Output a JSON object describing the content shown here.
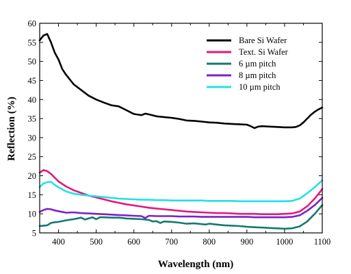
{
  "chart_data": {
    "type": "line",
    "xlabel": "Wavelength (nm)",
    "ylabel": "Reflection (%)",
    "xlim": [
      350,
      1100
    ],
    "ylim": [
      5,
      60
    ],
    "x_ticks": [
      400,
      500,
      600,
      700,
      800,
      900,
      1000,
      1100
    ],
    "y_ticks": [
      5,
      10,
      15,
      20,
      25,
      30,
      35,
      40,
      45,
      50,
      55,
      60
    ],
    "grid": false,
    "legend_position": "top-right",
    "series": [
      {
        "name": "Bare Si Wafer",
        "color": "#000000",
        "points": [
          [
            350,
            55.5
          ],
          [
            360,
            56.8
          ],
          [
            370,
            57.2
          ],
          [
            380,
            55
          ],
          [
            390,
            52.3
          ],
          [
            400,
            50.5
          ],
          [
            410,
            48
          ],
          [
            420,
            46.5
          ],
          [
            440,
            44
          ],
          [
            460,
            42.5
          ],
          [
            480,
            41
          ],
          [
            500,
            40
          ],
          [
            520,
            39.2
          ],
          [
            540,
            38.5
          ],
          [
            560,
            38.2
          ],
          [
            580,
            37.2
          ],
          [
            600,
            36.2
          ],
          [
            620,
            35.9
          ],
          [
            630,
            36.3
          ],
          [
            640,
            36.1
          ],
          [
            660,
            35.6
          ],
          [
            680,
            35.4
          ],
          [
            700,
            35.2
          ],
          [
            720,
            34.9
          ],
          [
            740,
            34.5
          ],
          [
            760,
            34.4
          ],
          [
            780,
            34.2
          ],
          [
            800,
            34
          ],
          [
            820,
            33.9
          ],
          [
            840,
            33.7
          ],
          [
            860,
            33.6
          ],
          [
            880,
            33.5
          ],
          [
            900,
            33.4
          ],
          [
            910,
            33
          ],
          [
            920,
            32.5
          ],
          [
            930,
            32.9
          ],
          [
            940,
            33
          ],
          [
            960,
            32.9
          ],
          [
            980,
            32.8
          ],
          [
            1000,
            32.7
          ],
          [
            1020,
            32.7
          ],
          [
            1030,
            32.8
          ],
          [
            1040,
            33.2
          ],
          [
            1050,
            34
          ],
          [
            1060,
            35
          ],
          [
            1070,
            36
          ],
          [
            1080,
            36.8
          ],
          [
            1090,
            37.4
          ],
          [
            1100,
            37.9
          ]
        ]
      },
      {
        "name": "Text. Si Wafer",
        "color": "#e3187a",
        "points": [
          [
            350,
            20.8
          ],
          [
            360,
            21.5
          ],
          [
            370,
            21.2
          ],
          [
            380,
            20.5
          ],
          [
            390,
            19.5
          ],
          [
            400,
            18.5
          ],
          [
            420,
            17.2
          ],
          [
            440,
            16.2
          ],
          [
            460,
            15.5
          ],
          [
            480,
            14.8
          ],
          [
            500,
            14.3
          ],
          [
            520,
            13.8
          ],
          [
            540,
            13.3
          ],
          [
            560,
            12.9
          ],
          [
            580,
            12.5
          ],
          [
            600,
            12.2
          ],
          [
            620,
            11.9
          ],
          [
            640,
            11.6
          ],
          [
            660,
            11.4
          ],
          [
            680,
            11.2
          ],
          [
            700,
            11
          ],
          [
            720,
            10.8
          ],
          [
            740,
            10.6
          ],
          [
            760,
            10.5
          ],
          [
            780,
            10.4
          ],
          [
            800,
            10.3
          ],
          [
            820,
            10.2
          ],
          [
            840,
            10.2
          ],
          [
            860,
            10.1
          ],
          [
            880,
            10
          ],
          [
            900,
            10
          ],
          [
            920,
            10
          ],
          [
            940,
            9.9
          ],
          [
            960,
            9.9
          ],
          [
            980,
            9.9
          ],
          [
            1000,
            10
          ],
          [
            1020,
            10.1
          ],
          [
            1040,
            10.6
          ],
          [
            1060,
            12
          ],
          [
            1080,
            14
          ],
          [
            1100,
            16.5
          ]
        ]
      },
      {
        "name": "6 µm pitch",
        "color": "#127a6c",
        "points": [
          [
            350,
            6.8
          ],
          [
            360,
            6.9
          ],
          [
            370,
            7
          ],
          [
            380,
            7.6
          ],
          [
            390,
            7.8
          ],
          [
            400,
            7.9
          ],
          [
            420,
            8.3
          ],
          [
            440,
            8.6
          ],
          [
            460,
            9
          ],
          [
            470,
            8.5
          ],
          [
            480,
            8.8
          ],
          [
            490,
            9.1
          ],
          [
            500,
            8.6
          ],
          [
            510,
            9.1
          ],
          [
            520,
            9.1
          ],
          [
            540,
            9
          ],
          [
            560,
            9
          ],
          [
            580,
            8.8
          ],
          [
            600,
            8.7
          ],
          [
            620,
            8.6
          ],
          [
            640,
            8.4
          ],
          [
            650,
            8
          ],
          [
            660,
            8.1
          ],
          [
            670,
            7.6
          ],
          [
            680,
            8
          ],
          [
            700,
            7.9
          ],
          [
            720,
            7.7
          ],
          [
            740,
            7.4
          ],
          [
            760,
            7.5
          ],
          [
            780,
            7.3
          ],
          [
            790,
            7.2
          ],
          [
            800,
            7.4
          ],
          [
            820,
            7.2
          ],
          [
            840,
            7
          ],
          [
            860,
            6.9
          ],
          [
            880,
            6.8
          ],
          [
            900,
            6.6
          ],
          [
            920,
            6.5
          ],
          [
            940,
            6.4
          ],
          [
            960,
            6.3
          ],
          [
            980,
            6.2
          ],
          [
            1000,
            6.1
          ],
          [
            1020,
            6.2
          ],
          [
            1040,
            6.7
          ],
          [
            1060,
            8
          ],
          [
            1080,
            10
          ],
          [
            1100,
            12.3
          ]
        ]
      },
      {
        "name": "8 µm pitch",
        "color": "#7e1fc8",
        "points": [
          [
            350,
            10.5
          ],
          [
            360,
            11
          ],
          [
            370,
            11.3
          ],
          [
            380,
            11.2
          ],
          [
            390,
            10.9
          ],
          [
            400,
            10.7
          ],
          [
            420,
            10.3
          ],
          [
            440,
            10.4
          ],
          [
            460,
            10.2
          ],
          [
            480,
            10.1
          ],
          [
            500,
            10
          ],
          [
            520,
            9.9
          ],
          [
            540,
            9.8
          ],
          [
            560,
            9.7
          ],
          [
            580,
            9.6
          ],
          [
            600,
            9.5
          ],
          [
            620,
            9.4
          ],
          [
            630,
            8.9
          ],
          [
            640,
            9.5
          ],
          [
            660,
            9.4
          ],
          [
            680,
            9.4
          ],
          [
            700,
            9.4
          ],
          [
            720,
            9.3
          ],
          [
            740,
            9.3
          ],
          [
            760,
            9.3
          ],
          [
            780,
            9.2
          ],
          [
            800,
            9.2
          ],
          [
            820,
            9.2
          ],
          [
            840,
            9.2
          ],
          [
            860,
            9.2
          ],
          [
            880,
            9.2
          ],
          [
            900,
            9.2
          ],
          [
            920,
            9.1
          ],
          [
            940,
            9.1
          ],
          [
            960,
            9.1
          ],
          [
            980,
            9.1
          ],
          [
            1000,
            9.1
          ],
          [
            1020,
            9.2
          ],
          [
            1040,
            9.6
          ],
          [
            1060,
            10.8
          ],
          [
            1080,
            12.3
          ],
          [
            1100,
            14.2
          ]
        ]
      },
      {
        "name": "10 µm pitch",
        "color": "#22e0e8",
        "points": [
          [
            350,
            17
          ],
          [
            360,
            18
          ],
          [
            370,
            18.3
          ],
          [
            380,
            18.4
          ],
          [
            390,
            17.6
          ],
          [
            400,
            17
          ],
          [
            420,
            15.9
          ],
          [
            440,
            15.3
          ],
          [
            460,
            15
          ],
          [
            480,
            14.8
          ],
          [
            500,
            14.6
          ],
          [
            520,
            14.4
          ],
          [
            540,
            14.2
          ],
          [
            560,
            14
          ],
          [
            580,
            13.9
          ],
          [
            600,
            13.8
          ],
          [
            620,
            13.7
          ],
          [
            640,
            13.7
          ],
          [
            660,
            13.6
          ],
          [
            680,
            13.6
          ],
          [
            700,
            13.5
          ],
          [
            720,
            13.5
          ],
          [
            740,
            13.5
          ],
          [
            760,
            13.5
          ],
          [
            780,
            13.5
          ],
          [
            800,
            13.4
          ],
          [
            820,
            13.4
          ],
          [
            840,
            13.4
          ],
          [
            860,
            13.4
          ],
          [
            880,
            13.3
          ],
          [
            900,
            13.3
          ],
          [
            920,
            13.3
          ],
          [
            940,
            13.3
          ],
          [
            960,
            13.3
          ],
          [
            980,
            13.3
          ],
          [
            1000,
            13.3
          ],
          [
            1020,
            13.4
          ],
          [
            1040,
            14
          ],
          [
            1060,
            15.4
          ],
          [
            1080,
            17
          ],
          [
            1100,
            18.8
          ]
        ]
      }
    ]
  }
}
